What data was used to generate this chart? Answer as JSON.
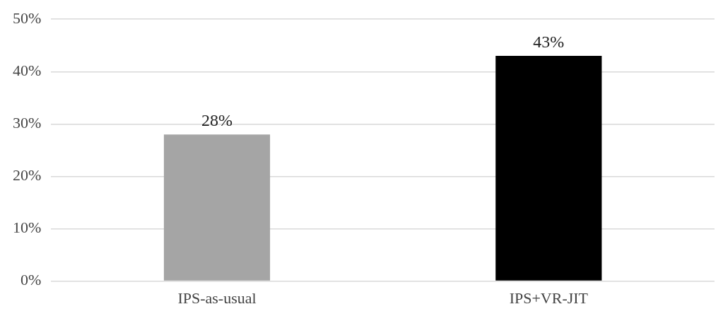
{
  "chart_data": {
    "type": "bar",
    "categories": [
      "IPS-as-usual",
      "IPS+VR-JIT"
    ],
    "values": [
      28,
      43
    ],
    "colors": [
      "#a5a5a5",
      "#000000"
    ],
    "value_labels": [
      "28%",
      "43%"
    ],
    "ylim": [
      0,
      50
    ],
    "yticks": [
      {
        "value": 0,
        "label": "0%"
      },
      {
        "value": 10,
        "label": "10%"
      },
      {
        "value": 20,
        "label": "20%"
      },
      {
        "value": 30,
        "label": "30%"
      },
      {
        "value": 40,
        "label": "40%"
      },
      {
        "value": 50,
        "label": "50%"
      }
    ],
    "grid": "y",
    "legend": false
  }
}
